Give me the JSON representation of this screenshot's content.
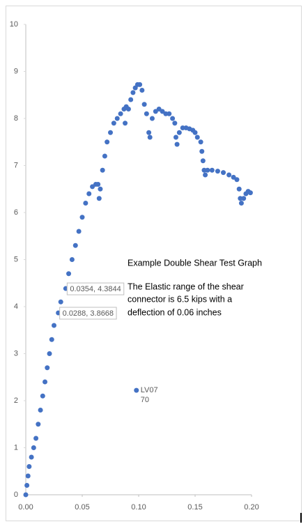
{
  "chart_data": {
    "type": "scatter",
    "series": [
      {
        "color": "#4472c4",
        "x": [
          0,
          0.001,
          0.002,
          0.003,
          0.005,
          0.007,
          0.009,
          0.011,
          0.013,
          0.015,
          0.017,
          0.019,
          0.021,
          0.023,
          0.025,
          0.0288,
          0.031,
          0.0354,
          0.038,
          0.041,
          0.044,
          0.047,
          0.05,
          0.053,
          0.056,
          0.059,
          0.062,
          0.064,
          0.065,
          0.066,
          0.068,
          0.07,
          0.072,
          0.075,
          0.078,
          0.081,
          0.084,
          0.087,
          0.088,
          0.089,
          0.091,
          0.093,
          0.095,
          0.097,
          0.099,
          0.101,
          0.103,
          0.105,
          0.107,
          0.109,
          0.11,
          0.112,
          0.115,
          0.118,
          0.121,
          0.124,
          0.127,
          0.13,
          0.132,
          0.133,
          0.134,
          0.136,
          0.139,
          0.142,
          0.145,
          0.148,
          0.15,
          0.152,
          0.155,
          0.156,
          0.157,
          0.158,
          0.159,
          0.161,
          0.165,
          0.17,
          0.175,
          0.18,
          0.184,
          0.187,
          0.189,
          0.19,
          0.191,
          0.193,
          0.195,
          0.197,
          0.199
        ],
        "values": [
          0,
          0.2,
          0.4,
          0.6,
          0.8,
          1.0,
          1.2,
          1.5,
          1.8,
          2.1,
          2.4,
          2.7,
          3.0,
          3.3,
          3.6,
          3.8668,
          4.1,
          4.3844,
          4.7,
          5.0,
          5.3,
          5.6,
          5.9,
          6.2,
          6.4,
          6.55,
          6.6,
          6.6,
          6.3,
          6.5,
          6.9,
          7.2,
          7.5,
          7.7,
          7.9,
          8.0,
          8.1,
          8.2,
          7.9,
          8.25,
          8.2,
          8.4,
          8.55,
          8.65,
          8.72,
          8.72,
          8.6,
          8.3,
          8.1,
          7.7,
          7.6,
          8.0,
          8.15,
          8.2,
          8.15,
          8.1,
          8.1,
          8.0,
          7.9,
          7.6,
          7.45,
          7.7,
          7.8,
          7.8,
          7.78,
          7.75,
          7.7,
          7.6,
          7.5,
          7.3,
          7.1,
          6.9,
          6.8,
          6.9,
          6.9,
          6.88,
          6.85,
          6.8,
          6.75,
          6.7,
          6.5,
          6.3,
          6.2,
          6.3,
          6.4,
          6.45,
          6.42
        ],
        "value_labels": [
          null,
          null,
          null,
          null,
          null,
          null,
          null,
          null,
          null,
          null,
          null,
          null,
          null,
          null,
          null,
          "0.0288, 3.8668",
          null,
          "0.0354, 4.3844",
          null,
          null,
          null,
          null,
          null,
          null,
          null,
          null,
          null,
          null,
          null,
          null,
          null,
          null,
          null,
          null,
          null,
          null,
          null,
          null,
          null,
          null,
          null,
          null,
          null,
          null,
          null,
          null,
          null,
          null,
          null,
          null,
          null,
          null,
          null,
          null,
          null,
          null,
          null,
          null,
          null,
          null,
          null,
          null,
          null,
          null,
          null,
          null,
          null,
          null,
          null,
          null,
          null,
          null,
          null,
          null,
          null,
          null,
          null,
          null,
          null,
          null,
          null,
          null,
          null,
          null,
          null,
          null,
          null
        ]
      }
    ],
    "labeled_point": {
      "x": 0.098,
      "y": 2.22,
      "label": [
        "LV07",
        "70"
      ]
    },
    "annotation_title": "Example Double Shear Test Graph",
    "annotation": [
      "The Elastic range of the shear",
      "connector is 6.5 kips with a",
      "deflection of 0.06 inches"
    ],
    "xlim": [
      0,
      0.2
    ],
    "ylim": [
      0,
      10
    ],
    "xticks": [
      {
        "value": 0,
        "label": "0.00"
      },
      {
        "value": 0.05,
        "label": "0.05"
      },
      {
        "value": 0.1,
        "label": "0.10"
      },
      {
        "value": 0.15,
        "label": "0.15"
      },
      {
        "value": 0.2,
        "label": "0.20"
      }
    ],
    "yticks": [
      0,
      1,
      2,
      3,
      4,
      5,
      6,
      7,
      8,
      9,
      10
    ],
    "grid": false
  }
}
